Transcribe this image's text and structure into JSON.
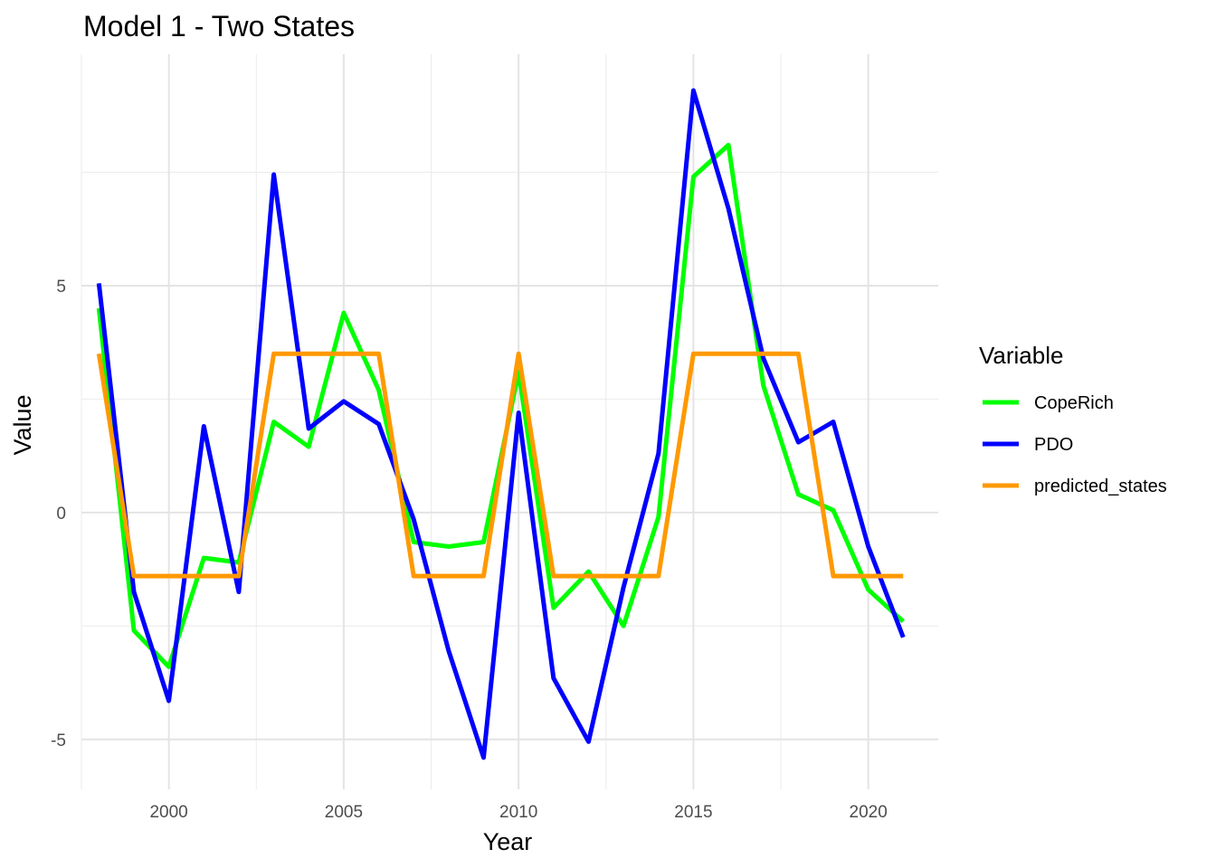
{
  "chart_data": {
    "type": "line",
    "title": "Model 1 - Two States",
    "xlabel": "Year",
    "ylabel": "Value",
    "xlim": [
      1997.5,
      2022
    ],
    "ylim": [
      -6.1,
      10.1
    ],
    "x_ticks": [
      2000,
      2005,
      2010,
      2015,
      2020
    ],
    "y_ticks": [
      -5,
      0,
      5
    ],
    "grid": true,
    "legend": {
      "title": "Variable",
      "position": "right"
    },
    "x": [
      1998,
      1999,
      2000,
      2001,
      2002,
      2003,
      2004,
      2005,
      2006,
      2007,
      2008,
      2009,
      2010,
      2011,
      2012,
      2013,
      2014,
      2015,
      2016,
      2017,
      2018,
      2019,
      2020,
      2021
    ],
    "series": [
      {
        "name": "CopeRich",
        "color": "#00FF00",
        "values": [
          4.5,
          -2.6,
          -3.4,
          -1.0,
          -1.1,
          2.0,
          1.45,
          4.4,
          2.7,
          -0.65,
          -0.75,
          -0.65,
          3.1,
          -2.1,
          -1.3,
          -2.5,
          -0.1,
          7.4,
          8.1,
          2.8,
          0.4,
          0.05,
          -1.7,
          -2.4
        ]
      },
      {
        "name": "PDO",
        "color": "#0000FF",
        "values": [
          5.05,
          -1.75,
          -4.15,
          1.9,
          -1.75,
          7.45,
          1.85,
          2.45,
          1.95,
          -0.15,
          -3.05,
          -5.4,
          2.2,
          -3.65,
          -5.05,
          -1.65,
          1.3,
          9.3,
          6.7,
          3.4,
          1.55,
          2.0,
          -0.75,
          -2.75
        ]
      },
      {
        "name": "predicted_states",
        "color": "#FF9900",
        "values": [
          3.5,
          -1.4,
          -1.4,
          -1.4,
          -1.4,
          3.5,
          3.5,
          3.5,
          3.5,
          -1.4,
          -1.4,
          -1.4,
          3.5,
          -1.4,
          -1.4,
          -1.4,
          -1.4,
          3.5,
          3.5,
          3.5,
          3.5,
          -1.4,
          -1.4,
          -1.4
        ]
      }
    ]
  }
}
